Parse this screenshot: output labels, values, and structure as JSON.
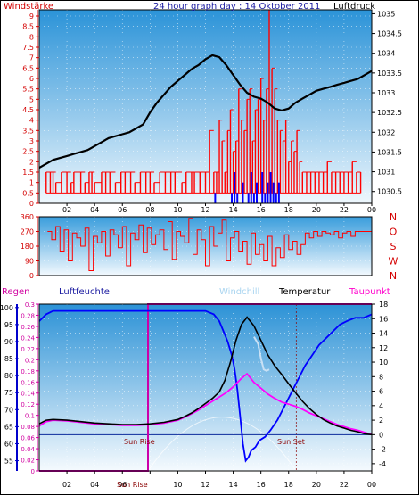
{
  "header": {
    "left": "Windstärke",
    "title": "24 hour graph day : 14 Oktober 2011",
    "right": "Luftdruck"
  },
  "legend": {
    "rain": "Regen",
    "humidity": "Luftfeuchte",
    "windchill": "Windchill",
    "temperature": "Temperatur",
    "dewpoint": "Taupunkt"
  },
  "sun": {
    "rise_label": "Sun Rise",
    "set_label": "Sun Set",
    "rise_axis_label": "Sun Rise",
    "sunrise_hour": 7.85,
    "sunset_hour": 18.55
  },
  "colors": {
    "wind": "#ff0000",
    "gust": "#0000ff",
    "pressure": "#000000",
    "direction": "#ff0000",
    "humidity": "#0000ff",
    "temperature": "#000000",
    "dewpoint": "#ff00ff",
    "windchill": "#c8e0f4",
    "rain": "#cc00aa"
  },
  "chart_data": [
    {
      "type": "bar",
      "id": "wind",
      "title": "Windstärke",
      "ylabel": "Windstärke",
      "y2label": "Luftdruck",
      "xlim": [
        0,
        24
      ],
      "ylim": [
        0,
        9.3
      ],
      "y2lim": [
        1030.2,
        1035.1
      ],
      "x_ticks": [
        "02",
        "04",
        "06",
        "08",
        "10",
        "12",
        "14",
        "16",
        "18",
        "20",
        "22",
        "00"
      ],
      "y_ticks": [
        "0",
        "0.5",
        "1",
        "1.5",
        "2",
        "2.5",
        "3",
        "3.5",
        "4",
        "4.5",
        "5",
        "5.5",
        "6",
        "6.5",
        "7",
        "7.5",
        "8",
        "8.5",
        "9"
      ],
      "y2_ticks": [
        "1030.5",
        "1031",
        "1031.5",
        "1032",
        "1032.5",
        "1033",
        "1033.5",
        "1034",
        "1034.5",
        "1035"
      ],
      "series": [
        {
          "name": "Windstärke",
          "kind": "bar",
          "x": [
            0.5,
            0.8,
            1.0,
            1.2,
            1.6,
            2.0,
            2.3,
            2.5,
            3.0,
            3.3,
            3.6,
            3.8,
            4.0,
            4.5,
            4.8,
            5.1,
            5.5,
            5.9,
            6.2,
            6.6,
            6.9,
            7.3,
            7.7,
            8.0,
            8.3,
            8.7,
            9.1,
            9.5,
            9.8,
            10.3,
            10.6,
            11.0,
            11.2,
            11.6,
            12.0,
            12.3,
            12.6,
            12.8,
            13.0,
            13.2,
            13.4,
            13.6,
            13.8,
            14.0,
            14.2,
            14.4,
            14.6,
            14.8,
            15.0,
            15.2,
            15.4,
            15.6,
            15.8,
            16.0,
            16.2,
            16.4,
            16.6,
            16.8,
            17.0,
            17.2,
            17.4,
            17.6,
            17.8,
            18.0,
            18.2,
            18.4,
            18.6,
            18.8,
            19.0,
            19.3,
            19.6,
            19.9,
            20.2,
            20.5,
            20.8,
            21.1,
            21.4,
            21.7,
            22.0,
            22.3,
            22.6,
            22.9,
            23.2
          ],
          "values": [
            1.5,
            1.5,
            1.5,
            1.0,
            1.5,
            1.5,
            1.0,
            1.5,
            1.5,
            1.0,
            1.5,
            1.5,
            1.0,
            1.5,
            1.5,
            1.5,
            1.0,
            1.5,
            1.5,
            1.5,
            1.0,
            1.5,
            1.5,
            1.5,
            1.0,
            1.5,
            1.5,
            1.5,
            1.5,
            1.0,
            1.5,
            1.5,
            1.5,
            1.5,
            1.5,
            3.5,
            1.5,
            1.5,
            4.0,
            3.0,
            1.5,
            3.5,
            4.5,
            2.5,
            3.0,
            5.5,
            4.0,
            3.5,
            5.0,
            5.5,
            3.0,
            4.5,
            5.0,
            6.0,
            4.0,
            5.5,
            9.3,
            6.5,
            5.5,
            4.0,
            3.5,
            3.0,
            4.0,
            2.0,
            3.0,
            2.5,
            3.5,
            2.0,
            1.5,
            1.5,
            1.5,
            1.5,
            1.5,
            1.5,
            2.0,
            1.5,
            1.5,
            1.5,
            1.5,
            1.5,
            2.0,
            1.5,
            1.5
          ]
        },
        {
          "name": "Böen",
          "kind": "bar",
          "x": [
            12.7,
            13.9,
            14.1,
            14.3,
            14.7,
            15.1,
            15.3,
            15.5,
            15.7,
            16.1,
            16.3,
            16.5,
            16.7,
            16.9,
            17.1,
            17.3
          ],
          "values": [
            0.5,
            0.5,
            1.5,
            0.5,
            1.0,
            0.5,
            1.5,
            0.5,
            1.0,
            1.5,
            0.5,
            1.0,
            1.5,
            1.0,
            0.5,
            1.0
          ]
        },
        {
          "name": "Luftdruck",
          "kind": "line",
          "axis": "y2",
          "x": [
            0.0,
            0.5,
            1.0,
            1.5,
            2.0,
            2.5,
            3.0,
            3.5,
            4.0,
            4.5,
            5.0,
            5.5,
            6.0,
            6.5,
            7.0,
            7.5,
            8.0,
            8.5,
            9.0,
            9.5,
            10.0,
            10.5,
            11.0,
            11.5,
            12.0,
            12.5,
            13.0,
            13.5,
            14.0,
            14.5,
            15.0,
            15.5,
            16.0,
            16.5,
            17.0,
            17.5,
            18.0,
            18.5,
            19.0,
            19.5,
            20.0,
            20.5,
            21.0,
            21.5,
            22.0,
            22.5,
            23.0,
            23.5,
            24.0
          ],
          "values": [
            1031.1,
            1031.2,
            1031.3,
            1031.35,
            1031.4,
            1031.45,
            1031.5,
            1031.55,
            1031.65,
            1031.75,
            1031.85,
            1031.9,
            1031.95,
            1032.0,
            1032.1,
            1032.2,
            1032.5,
            1032.75,
            1032.95,
            1033.15,
            1033.3,
            1033.45,
            1033.6,
            1033.7,
            1033.85,
            1033.95,
            1033.9,
            1033.7,
            1033.45,
            1033.2,
            1033.0,
            1032.9,
            1032.85,
            1032.75,
            1032.6,
            1032.55,
            1032.6,
            1032.75,
            1032.85,
            1032.95,
            1033.05,
            1033.1,
            1033.15,
            1033.2,
            1033.25,
            1033.3,
            1033.35,
            1033.45,
            1033.55
          ]
        }
      ]
    },
    {
      "type": "line",
      "id": "direction",
      "xlim": [
        0,
        24
      ],
      "ylim": [
        0,
        360
      ],
      "y_ticks": [
        "0",
        "90",
        "180",
        "270",
        "360"
      ],
      "right_labels": [
        "N",
        "W",
        "S",
        "O",
        "N"
      ],
      "series": [
        {
          "name": "Windrichtung",
          "x": [
            0.6,
            0.9,
            1.2,
            1.5,
            1.8,
            2.1,
            2.4,
            2.7,
            3.0,
            3.3,
            3.6,
            3.9,
            4.2,
            4.5,
            4.8,
            5.1,
            5.4,
            5.7,
            6.0,
            6.3,
            6.6,
            6.9,
            7.2,
            7.5,
            7.8,
            8.1,
            8.4,
            8.7,
            9.0,
            9.3,
            9.6,
            9.9,
            10.2,
            10.5,
            10.8,
            11.1,
            11.4,
            11.7,
            12.0,
            12.3,
            12.6,
            12.9,
            13.2,
            13.5,
            13.8,
            14.1,
            14.4,
            14.7,
            15.0,
            15.3,
            15.6,
            15.9,
            16.2,
            16.5,
            16.8,
            17.1,
            17.4,
            17.7,
            18.0,
            18.3,
            18.6,
            18.9,
            19.2,
            19.5,
            19.8,
            20.1,
            20.4,
            20.7,
            21.0,
            21.3,
            21.6,
            21.9,
            22.2,
            22.5,
            22.8,
            23.1,
            23.4,
            23.7,
            24.0
          ],
          "values": [
            270,
            220,
            300,
            150,
            280,
            90,
            260,
            230,
            180,
            290,
            30,
            240,
            200,
            270,
            120,
            280,
            250,
            170,
            300,
            60,
            260,
            220,
            310,
            140,
            290,
            190,
            250,
            280,
            160,
            330,
            100,
            270,
            240,
            200,
            350,
            130,
            280,
            220,
            60,
            300,
            180,
            260,
            340,
            90,
            230,
            270,
            150,
            210,
            70,
            260,
            130,
            190,
            90,
            240,
            60,
            170,
            110,
            250,
            160,
            210,
            130,
            190,
            260,
            230,
            270,
            240,
            270,
            260,
            250,
            270,
            230,
            260,
            270,
            240,
            270,
            270,
            270,
            270,
            270
          ]
        }
      ]
    },
    {
      "type": "line",
      "id": "climate",
      "xlim": [
        0,
        24
      ],
      "humidity_ylim": [
        52,
        101
      ],
      "rain_ylim": [
        0,
        0.3
      ],
      "temp_ylim": [
        -5,
        18
      ],
      "humidity_ticks": [
        "55",
        "60",
        "65",
        "70",
        "75",
        "80",
        "85",
        "90",
        "95",
        "100"
      ],
      "rain_ticks": [
        "0",
        "0.02",
        "0.04",
        "0.06",
        "0.08",
        "0.1",
        "0.12",
        "0.14",
        "0.16",
        "0.18",
        "0.2",
        "0.22",
        "0.24",
        "0.26",
        "0.28",
        "0.3"
      ],
      "temp_ticks": [
        "-4",
        "-2",
        "0",
        "2",
        "4",
        "6",
        "8",
        "10",
        "12",
        "14",
        "16",
        "18"
      ],
      "x_ticks": [
        "02",
        "04",
        "06",
        "08",
        "10",
        "12",
        "14",
        "16",
        "18",
        "20",
        "22",
        "00"
      ],
      "series": [
        {
          "name": "Luftfeuchte",
          "axis": "humidity",
          "x": [
            0.0,
            0.5,
            1.0,
            4.0,
            8.0,
            11.0,
            12.0,
            12.6,
            13.0,
            13.3,
            13.6,
            13.9,
            14.1,
            14.3,
            14.5,
            14.7,
            14.9,
            15.1,
            15.3,
            15.6,
            15.9,
            16.3,
            16.7,
            17.2,
            17.7,
            18.2,
            18.7,
            19.2,
            19.7,
            20.2,
            20.7,
            21.2,
            21.7,
            22.2,
            22.8,
            23.4,
            24.0
          ],
          "values": [
            96,
            98,
            99,
            99,
            99,
            99,
            99,
            98,
            96,
            93,
            90,
            86,
            82,
            76,
            68,
            60,
            55,
            56,
            58,
            59,
            61,
            62,
            64,
            67,
            71,
            75,
            79,
            83,
            86,
            89,
            91,
            93,
            95,
            96,
            97,
            97,
            98
          ]
        },
        {
          "name": "Temperatur",
          "axis": "temp",
          "x": [
            0.0,
            0.5,
            1.0,
            2.0,
            3.0,
            4.0,
            5.0,
            6.0,
            7.0,
            8.0,
            9.0,
            10.0,
            10.5,
            11.0,
            11.5,
            12.0,
            12.5,
            13.0,
            13.4,
            13.8,
            14.2,
            14.6,
            15.0,
            15.5,
            16.0,
            16.5,
            17.0,
            17.5,
            18.0,
            18.5,
            19.0,
            19.5,
            20.0,
            20.5,
            21.0,
            21.5,
            22.0,
            22.5,
            23.0,
            23.5,
            24.0
          ],
          "values": [
            1.5,
            2.0,
            2.1,
            2.0,
            1.8,
            1.6,
            1.5,
            1.4,
            1.4,
            1.5,
            1.7,
            2.1,
            2.5,
            3.0,
            3.6,
            4.3,
            5.0,
            5.9,
            7.5,
            10.0,
            13.0,
            15.2,
            16.2,
            15.0,
            13.0,
            11.0,
            9.5,
            8.3,
            7.0,
            5.8,
            4.6,
            3.6,
            2.8,
            2.1,
            1.6,
            1.2,
            0.9,
            0.6,
            0.4,
            0.1,
            0.0
          ]
        },
        {
          "name": "Taupunkt",
          "axis": "temp",
          "x": [
            0.0,
            0.5,
            1.0,
            2.0,
            3.0,
            4.0,
            5.0,
            6.0,
            7.0,
            8.0,
            9.0,
            10.0,
            10.5,
            11.0,
            11.5,
            12.0,
            12.5,
            13.0,
            13.5,
            14.0,
            14.5,
            15.0,
            15.5,
            16.0,
            16.5,
            17.0,
            17.5,
            18.0,
            18.5,
            19.0,
            19.5,
            20.0,
            20.5,
            21.0,
            21.5,
            22.0,
            22.5,
            23.0,
            23.5,
            24.0
          ],
          "values": [
            1.2,
            1.8,
            2.0,
            1.9,
            1.7,
            1.5,
            1.4,
            1.3,
            1.3,
            1.4,
            1.6,
            2.0,
            2.4,
            2.9,
            3.4,
            4.0,
            4.6,
            5.2,
            5.8,
            6.6,
            7.6,
            8.4,
            7.2,
            6.4,
            5.6,
            5.0,
            4.5,
            4.2,
            3.9,
            3.5,
            3.0,
            2.6,
            2.2,
            1.8,
            1.4,
            1.1,
            0.8,
            0.6,
            0.3,
            0.0
          ]
        },
        {
          "name": "Windchill",
          "axis": "temp",
          "x": [
            15.5,
            15.8,
            16.0,
            16.2,
            16.4,
            16.6
          ],
          "values": [
            13.5,
            12.5,
            10.5,
            9.0,
            8.8,
            9.0
          ]
        },
        {
          "name": "Regen",
          "axis": "rain",
          "x": [
            0.0,
            7.85,
            7.85,
            24.0
          ],
          "values": [
            0.0,
            0.0,
            0.3,
            0.3
          ]
        }
      ]
    }
  ]
}
